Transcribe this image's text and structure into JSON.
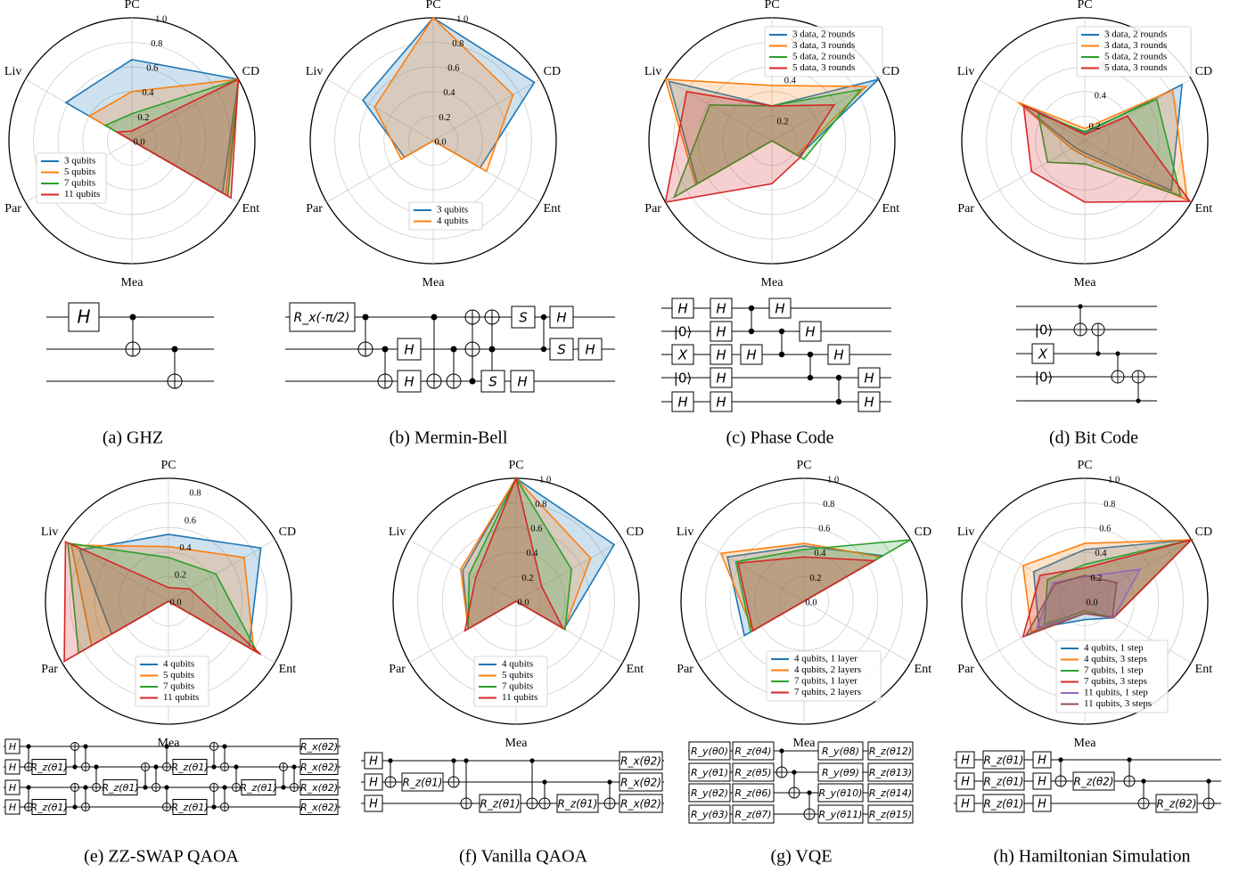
{
  "axes": [
    "PC",
    "CD",
    "Ent",
    "Mea",
    "Par",
    "Liv"
  ],
  "colors": {
    "blue": "#1f77b4",
    "orange": "#ff7f0e",
    "green": "#2ca02c",
    "red": "#d62728",
    "purple": "#9467bd",
    "brown": "#8c564b"
  },
  "chart_data": [
    {
      "type": "radar",
      "caption": "(a) GHZ",
      "ticks": [
        "0.0",
        "0.2",
        "0.4",
        "0.6",
        "0.8",
        "1.0"
      ],
      "rmin": 0,
      "rmax": 1.0,
      "legend_position": "lower-left",
      "series": [
        {
          "name": "3 qubits",
          "color": "blue",
          "values": [
            0.66,
            1.0,
            0.85,
            0,
            0,
            0.62
          ]
        },
        {
          "name": "5 qubits",
          "color": "orange",
          "values": [
            0.4,
            1.0,
            0.88,
            0,
            0,
            0.4
          ]
        },
        {
          "name": "7 qubits",
          "color": "green",
          "values": [
            0.22,
            1.0,
            0.9,
            0,
            0,
            0.25
          ]
        },
        {
          "name": "11 qubits",
          "color": "red",
          "values": [
            0.08,
            1.0,
            0.93,
            0,
            0,
            0.14
          ]
        }
      ]
    },
    {
      "type": "radar",
      "caption": "(b) Mermin-Bell",
      "ticks": [
        "0.0",
        "0.2",
        "0.4",
        "0.6",
        "0.8",
        "1.0"
      ],
      "rmin": 0,
      "rmax": 1.0,
      "legend_position": "lower-center",
      "series": [
        {
          "name": "3 qubits",
          "color": "blue",
          "values": [
            1.0,
            0.95,
            0.44,
            0,
            0.27,
            0.66
          ]
        },
        {
          "name": "4 qubits",
          "color": "orange",
          "values": [
            1.0,
            0.75,
            0.5,
            0,
            0.3,
            0.55
          ]
        }
      ]
    },
    {
      "type": "radar",
      "caption": "(c) Phase Code",
      "ticks": [
        "0.2",
        "0.4",
        "0.6"
      ],
      "rmin": 0.1,
      "rmax": 0.7,
      "legend_position": "upper-right",
      "series": [
        {
          "name": "3 data, 2 rounds",
          "color": "blue",
          "values": [
            0.27,
            0.7,
            0.25,
            0.1,
            0.52,
            0.68
          ]
        },
        {
          "name": "3 data, 3 rounds",
          "color": "orange",
          "values": [
            0.37,
            0.63,
            0.24,
            0.1,
            0.53,
            0.7
          ]
        },
        {
          "name": "5 data, 2 rounds",
          "color": "green",
          "values": [
            0.27,
            0.6,
            0.28,
            0.1,
            0.65,
            0.45
          ]
        },
        {
          "name": "5 data, 3 rounds",
          "color": "red",
          "values": [
            0.27,
            0.45,
            0.26,
            0.31,
            0.7,
            0.58
          ]
        }
      ]
    },
    {
      "type": "radar",
      "caption": "(d) Bit Code",
      "ticks": [
        "0.2",
        "0.4",
        "0.6",
        "0.8"
      ],
      "rmin": 0.1,
      "rmax": 0.9,
      "legend_position": "upper-right",
      "series": [
        {
          "name": "3 data, 2 rounds",
          "color": "blue",
          "values": [
            0.15,
            0.83,
            0.75,
            0.18,
            0.18,
            0.58
          ]
        },
        {
          "name": "3 data, 3 rounds",
          "color": "orange",
          "values": [
            0.18,
            0.76,
            0.87,
            0.2,
            0.2,
            0.6
          ]
        },
        {
          "name": "5 data, 2 rounds",
          "color": "green",
          "values": [
            0.16,
            0.64,
            0.82,
            0.25,
            0.38,
            0.45
          ]
        },
        {
          "name": "5 data, 3 rounds",
          "color": "red",
          "values": [
            0.14,
            0.42,
            0.89,
            0.5,
            0.5,
            0.56
          ]
        }
      ]
    },
    {
      "type": "radar",
      "caption": "(e) ZZ-SWAP QAOA",
      "ticks": [
        "0.0",
        "0.2",
        "0.4",
        "0.6",
        "0.8"
      ],
      "rmin": 0,
      "rmax": 0.9,
      "legend_position": "lower-center",
      "series": [
        {
          "name": "4 qubits",
          "color": "blue",
          "values": [
            0.49,
            0.78,
            0.68,
            0,
            0.48,
            0.75
          ]
        },
        {
          "name": "5 qubits",
          "color": "orange",
          "values": [
            0.4,
            0.64,
            0.72,
            0,
            0.65,
            0.82
          ]
        },
        {
          "name": "7 qubits",
          "color": "green",
          "values": [
            0.32,
            0.4,
            0.75,
            0,
            0.76,
            0.85
          ]
        },
        {
          "name": "11 qubits",
          "color": "red",
          "values": [
            0.1,
            0.18,
            0.78,
            0,
            0.88,
            0.87
          ]
        }
      ]
    },
    {
      "type": "radar",
      "caption": "(f) Vanilla QAOA",
      "ticks": [
        "0.0",
        "0.2",
        "0.4",
        "0.6",
        "0.8",
        "1.0"
      ],
      "rmin": 0,
      "rmax": 1.0,
      "legend_position": "lower-center",
      "series": [
        {
          "name": "4 qubits",
          "color": "blue",
          "values": [
            1.0,
            0.92,
            0.45,
            0,
            0.45,
            0.5
          ]
        },
        {
          "name": "5 qubits",
          "color": "orange",
          "values": [
            1.0,
            0.7,
            0.45,
            0,
            0.45,
            0.52
          ]
        },
        {
          "name": "7 qubits",
          "color": "green",
          "values": [
            1.0,
            0.52,
            0.46,
            0,
            0.45,
            0.44
          ]
        },
        {
          "name": "11 qubits",
          "color": "red",
          "values": [
            1.0,
            0.24,
            0.44,
            0,
            0.48,
            0.38
          ]
        }
      ]
    },
    {
      "type": "radar",
      "caption": "(g) VQE",
      "ticks": [
        "0.0",
        "0.2",
        "0.4",
        "0.6",
        "0.8",
        "1.0"
      ],
      "rmin": 0,
      "rmax": 1.0,
      "legend_position": "lower-right",
      "series": [
        {
          "name": "4 qubits, 1 layer",
          "color": "blue",
          "values": [
            0.45,
            0.74,
            0,
            0,
            0.56,
            0.72
          ]
        },
        {
          "name": "4 qubits, 2 layers",
          "color": "orange",
          "values": [
            0.47,
            0.72,
            0,
            0,
            0.48,
            0.78
          ]
        },
        {
          "name": "7 qubits, 1 layer",
          "color": "green",
          "values": [
            0.42,
            1.0,
            0,
            0,
            0.5,
            0.64
          ]
        },
        {
          "name": "7 qubits, 2 layers",
          "color": "red",
          "values": [
            0.36,
            0.66,
            0,
            0,
            0.48,
            0.62
          ]
        }
      ]
    },
    {
      "type": "radar",
      "caption": "(h) Hamiltonian Simulation",
      "ticks": [
        "0.0",
        "0.2",
        "0.4",
        "0.6",
        "0.8",
        "1.0"
      ],
      "rmin": 0,
      "rmax": 1.0,
      "legend_position": "lower-right",
      "series": [
        {
          "name": "4 qubits, 1 step",
          "color": "blue",
          "values": [
            0.42,
            1.0,
            0.27,
            0.15,
            0.43,
            0.48
          ]
        },
        {
          "name": "4 qubits, 3 steps",
          "color": "orange",
          "values": [
            0.47,
            1.0,
            0.27,
            0.1,
            0.5,
            0.58
          ]
        },
        {
          "name": "7 qubits, 1 step",
          "color": "green",
          "values": [
            0.3,
            1.0,
            0.27,
            0.08,
            0.38,
            0.35
          ]
        },
        {
          "name": "7 qubits, 3 steps",
          "color": "red",
          "values": [
            0.27,
            1.0,
            0.27,
            0.1,
            0.58,
            0.42
          ]
        },
        {
          "name": "11 qubits, 1 step",
          "color": "purple",
          "values": [
            0.2,
            0.52,
            0.27,
            0.1,
            0.45,
            0.3
          ]
        },
        {
          "name": "11 qubits, 3 steps",
          "color": "brown",
          "values": [
            0.21,
            0.3,
            0.26,
            0.1,
            0.55,
            0.28
          ]
        }
      ]
    }
  ],
  "circuits": {
    "a": {
      "gates": [
        "H"
      ]
    },
    "b": {
      "gates": [
        "R_x(-π/2)",
        "H",
        "S"
      ]
    },
    "c": {
      "gates": [
        "H",
        "X",
        "|0⟩"
      ]
    },
    "d": {
      "gates": [
        "|0⟩",
        "X"
      ]
    },
    "e": {
      "gates": [
        "H",
        "R_z(θ1)",
        "R_x(θ2)"
      ]
    },
    "f": {
      "gates": [
        "H",
        "R_z(θ1)",
        "R_x(θ2)"
      ]
    },
    "g": {
      "gates": [
        "R_y(θ0)",
        "R_y(θ1)",
        "R_y(θ2)",
        "R_y(θ3)",
        "R_z(θ4)",
        "R_z(θ5)",
        "R_z(θ6)",
        "R_z(θ7)",
        "R_y(θ8)",
        "R_y(θ9)",
        "R_y(θ10)",
        "R_y(θ11)",
        "R_z(θ12)",
        "R_z(θ13)",
        "R_z(θ14)",
        "R_z(θ15)"
      ]
    },
    "h": {
      "gates": [
        "H",
        "R_z(θ1)",
        "R_z(θ2)"
      ]
    }
  }
}
